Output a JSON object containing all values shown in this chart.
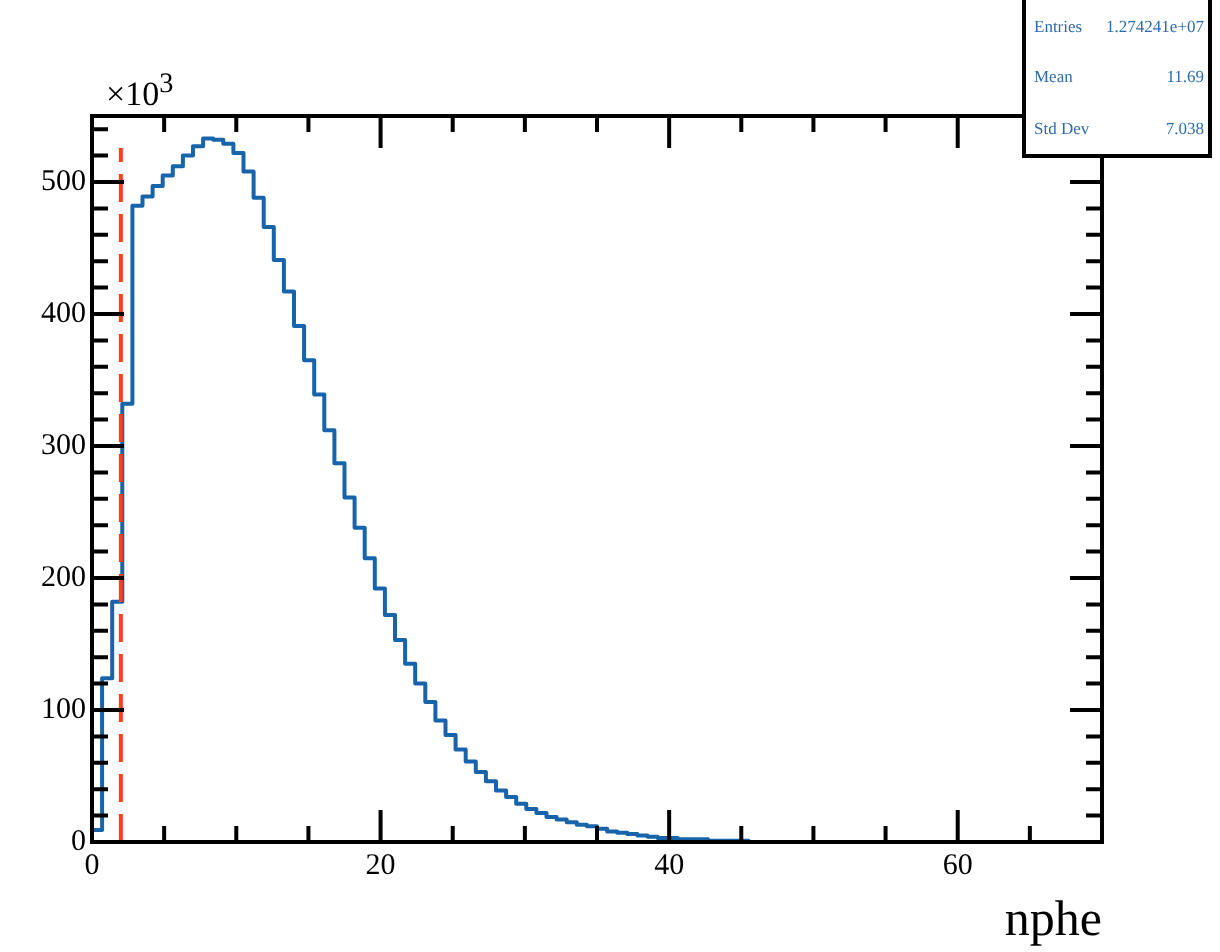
{
  "chart_data": {
    "type": "histogram",
    "xlabel": "nphe",
    "bins": [
      0,
      0.7,
      1.4,
      2.1,
      2.8,
      3.5,
      4.2,
      4.9,
      5.6,
      6.3,
      7,
      7.7,
      8.4,
      9.1,
      9.8,
      10.5,
      11.2,
      11.9,
      12.6,
      13.3,
      14,
      14.7,
      15.4,
      16.1,
      16.8,
      17.5,
      18.2,
      18.9,
      19.6,
      20.3,
      21,
      21.7,
      22.4,
      23.1,
      23.8,
      24.5,
      25.2,
      25.9,
      26.6,
      27.3,
      28,
      28.7,
      29.4,
      30.1,
      30.8,
      31.5,
      32.2,
      32.9,
      33.6,
      34.3,
      35,
      35.7,
      36.4,
      37.1,
      37.8,
      38.5,
      39.2,
      39.9,
      40.6,
      41.3,
      42,
      42.7,
      43.4,
      44.1,
      44.8,
      45.5,
      46.2,
      46.9,
      47.6,
      48.3,
      49,
      49.7,
      50.4,
      51.1,
      51.8,
      52.5,
      53.2,
      53.9,
      54.6,
      55.3,
      56,
      56.7,
      57.4,
      58.1,
      58.8,
      59.5,
      60.2,
      60.9,
      61.6,
      62.3,
      63,
      63.7,
      64.4,
      65.1,
      65.8,
      66.5,
      67.2,
      67.9,
      68.6,
      69.3,
      70
    ],
    "values": [
      9,
      124,
      182,
      332,
      482,
      489,
      497,
      505,
      512,
      520,
      527,
      533,
      532,
      529,
      522,
      508,
      488,
      466,
      441,
      417,
      391,
      365,
      339,
      312,
      287,
      261,
      238,
      215,
      192,
      172,
      153,
      135,
      120,
      106,
      92,
      81,
      70,
      61,
      53,
      46,
      39,
      34,
      29,
      25,
      22,
      19,
      17,
      15,
      13,
      12,
      10,
      8,
      7,
      6,
      5,
      4,
      3,
      3,
      2,
      2,
      2,
      1,
      1,
      1,
      1,
      0,
      0,
      0,
      0,
      0,
      0,
      0,
      0,
      0,
      0,
      0,
      0,
      0,
      0,
      0,
      0,
      0,
      0,
      0,
      0,
      0,
      0,
      0,
      0,
      0,
      0,
      0,
      0,
      0,
      0,
      0,
      0,
      0,
      0,
      0
    ],
    "color": "#1764ab",
    "xlim": [
      0,
      70
    ],
    "xticks": [
      0,
      {
        "value": 5,
        "label": null
      },
      {
        "value": 10,
        "label": null
      },
      {
        "value": 15,
        "label": null
      },
      20,
      {
        "value": 25,
        "label": null
      },
      {
        "value": 30,
        "label": null
      },
      {
        "value": 35,
        "label": null
      },
      40,
      {
        "value": 45,
        "label": null
      },
      {
        "value": 50,
        "label": null
      },
      {
        "value": 55,
        "label": null
      },
      60,
      {
        "value": 65,
        "label": null
      }
    ],
    "ylim": [
      0,
      550
    ],
    "yticks": [
      0,
      {
        "value": 20,
        "label": null
      },
      {
        "value": 40,
        "label": null
      },
      {
        "value": 60,
        "label": null
      },
      {
        "value": 80,
        "label": null
      },
      100,
      {
        "value": 120,
        "label": null
      },
      {
        "value": 140,
        "label": null
      },
      {
        "value": 160,
        "label": null
      },
      {
        "value": 180,
        "label": null
      },
      200,
      {
        "value": 220,
        "label": null
      },
      {
        "value": 240,
        "label": null
      },
      {
        "value": 260,
        "label": null
      },
      {
        "value": 280,
        "label": null
      },
      300,
      {
        "value": 320,
        "label": null
      },
      {
        "value": 340,
        "label": null
      },
      {
        "value": 360,
        "label": null
      },
      {
        "value": 380,
        "label": null
      },
      400,
      {
        "value": 420,
        "label": null
      },
      {
        "value": 440,
        "label": null
      },
      {
        "value": 460,
        "label": null
      },
      {
        "value": 480,
        "label": null
      },
      500,
      {
        "value": 520,
        "label": null
      },
      {
        "value": 540,
        "label": null
      }
    ],
    "ref_lines": [
      {
        "axis": "x",
        "value": 2,
        "color": "#ff3d1f",
        "line_style": "dashed"
      }
    ],
    "annotations": [
      "×10$^{3}$",
      "Entries",
      "1.274241e+07",
      "Mean",
      "11.69",
      "Std Dev",
      "7.038"
    ],
    "grid": false,
    "legend": false
  }
}
